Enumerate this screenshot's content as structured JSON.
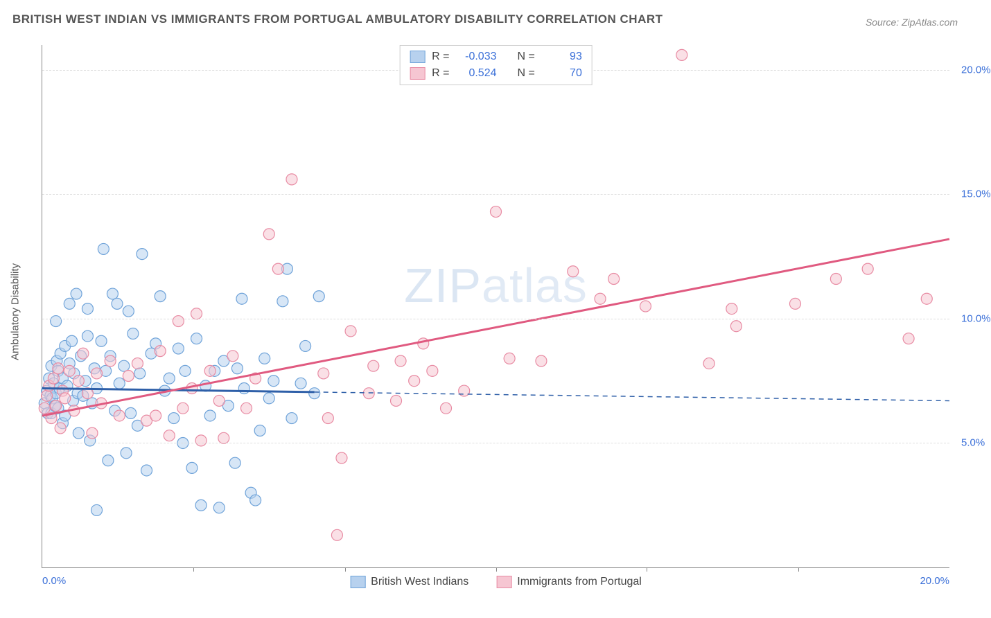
{
  "title": "BRITISH WEST INDIAN VS IMMIGRANTS FROM PORTUGAL AMBULATORY DISABILITY CORRELATION CHART",
  "source": "Source: ZipAtlas.com",
  "ylabel": "Ambulatory Disability",
  "watermark_a": "ZIP",
  "watermark_b": "atlas",
  "chart": {
    "type": "scatter",
    "xlim": [
      0,
      20
    ],
    "ylim": [
      0,
      21
    ],
    "yticks": [
      5,
      10,
      15,
      20
    ],
    "ytick_labels": [
      "5.0%",
      "10.0%",
      "15.0%",
      "20.0%"
    ],
    "xticks": [
      0,
      20
    ],
    "xtick_labels": [
      "0.0%",
      "20.0%"
    ],
    "xtick_minor": [
      3.33,
      6.67,
      10.0,
      13.33,
      16.67
    ],
    "background_color": "#ffffff",
    "grid_color": "#dddddd",
    "marker_radius": 8,
    "marker_stroke_width": 1.2,
    "trend_line_width": 3,
    "trend_dash_width": 1.5
  },
  "series": {
    "blue": {
      "label": "British West Indians",
      "fill": "#b7d1ee",
      "stroke": "#6fa3d9",
      "fill_opacity": 0.55,
      "R": "-0.033",
      "N": "93",
      "trend_y0": 7.2,
      "trend_y_at6": 7.05,
      "trend_y20": 6.7,
      "points": [
        [
          0.05,
          6.6
        ],
        [
          0.1,
          7.1
        ],
        [
          0.12,
          6.2
        ],
        [
          0.15,
          7.6
        ],
        [
          0.18,
          6.9
        ],
        [
          0.2,
          8.1
        ],
        [
          0.2,
          6.2
        ],
        [
          0.22,
          6.8
        ],
        [
          0.25,
          7.4
        ],
        [
          0.28,
          6.5
        ],
        [
          0.3,
          9.9
        ],
        [
          0.3,
          7.0
        ],
        [
          0.32,
          8.3
        ],
        [
          0.35,
          7.9
        ],
        [
          0.35,
          6.4
        ],
        [
          0.38,
          7.2
        ],
        [
          0.4,
          8.6
        ],
        [
          0.45,
          5.8
        ],
        [
          0.45,
          7.6
        ],
        [
          0.5,
          8.9
        ],
        [
          0.5,
          6.1
        ],
        [
          0.55,
          7.3
        ],
        [
          0.6,
          10.6
        ],
        [
          0.6,
          8.2
        ],
        [
          0.65,
          9.1
        ],
        [
          0.68,
          6.7
        ],
        [
          0.7,
          7.8
        ],
        [
          0.75,
          11.0
        ],
        [
          0.78,
          7.0
        ],
        [
          0.8,
          5.4
        ],
        [
          0.85,
          8.5
        ],
        [
          0.9,
          6.9
        ],
        [
          0.95,
          7.5
        ],
        [
          1.0,
          9.3
        ],
        [
          1.0,
          10.4
        ],
        [
          1.05,
          5.1
        ],
        [
          1.1,
          6.6
        ],
        [
          1.15,
          8.0
        ],
        [
          1.2,
          2.3
        ],
        [
          1.2,
          7.2
        ],
        [
          1.3,
          9.1
        ],
        [
          1.35,
          12.8
        ],
        [
          1.4,
          7.9
        ],
        [
          1.45,
          4.3
        ],
        [
          1.5,
          8.5
        ],
        [
          1.55,
          11.0
        ],
        [
          1.6,
          6.3
        ],
        [
          1.65,
          10.6
        ],
        [
          1.7,
          7.4
        ],
        [
          1.8,
          8.1
        ],
        [
          1.85,
          4.6
        ],
        [
          1.9,
          10.3
        ],
        [
          1.95,
          6.2
        ],
        [
          2.0,
          9.4
        ],
        [
          2.1,
          5.7
        ],
        [
          2.15,
          7.8
        ],
        [
          2.2,
          12.6
        ],
        [
          2.3,
          3.9
        ],
        [
          2.4,
          8.6
        ],
        [
          2.5,
          9.0
        ],
        [
          2.6,
          10.9
        ],
        [
          2.7,
          7.1
        ],
        [
          2.8,
          7.6
        ],
        [
          2.9,
          6.0
        ],
        [
          3.0,
          8.8
        ],
        [
          3.1,
          5.0
        ],
        [
          3.15,
          7.9
        ],
        [
          3.3,
          4.0
        ],
        [
          3.4,
          9.2
        ],
        [
          3.5,
          2.5
        ],
        [
          3.6,
          7.3
        ],
        [
          3.7,
          6.1
        ],
        [
          3.8,
          7.9
        ],
        [
          3.9,
          2.4
        ],
        [
          4.0,
          8.3
        ],
        [
          4.1,
          6.5
        ],
        [
          4.25,
          4.2
        ],
        [
          4.3,
          8.0
        ],
        [
          4.4,
          10.8
        ],
        [
          4.45,
          7.2
        ],
        [
          4.6,
          3.0
        ],
        [
          4.7,
          2.7
        ],
        [
          4.8,
          5.5
        ],
        [
          4.9,
          8.4
        ],
        [
          5.0,
          6.8
        ],
        [
          5.1,
          7.5
        ],
        [
          5.3,
          10.7
        ],
        [
          5.4,
          12.0
        ],
        [
          5.5,
          6.0
        ],
        [
          5.7,
          7.4
        ],
        [
          5.8,
          8.9
        ],
        [
          6.0,
          7.0
        ],
        [
          6.1,
          10.9
        ]
      ]
    },
    "pink": {
      "label": "Immigrants from Portugal",
      "fill": "#f6c6d2",
      "stroke": "#e88ba3",
      "fill_opacity": 0.55,
      "R": "0.524",
      "N": "70",
      "trend_y0": 6.1,
      "trend_y20": 13.2,
      "points": [
        [
          0.05,
          6.4
        ],
        [
          0.1,
          6.9
        ],
        [
          0.15,
          7.3
        ],
        [
          0.2,
          6.0
        ],
        [
          0.25,
          7.6
        ],
        [
          0.3,
          6.5
        ],
        [
          0.35,
          8.0
        ],
        [
          0.4,
          5.6
        ],
        [
          0.45,
          7.1
        ],
        [
          0.5,
          6.8
        ],
        [
          0.6,
          7.9
        ],
        [
          0.7,
          6.3
        ],
        [
          0.8,
          7.5
        ],
        [
          0.9,
          8.6
        ],
        [
          1.0,
          7.0
        ],
        [
          1.1,
          5.4
        ],
        [
          1.2,
          7.8
        ],
        [
          1.3,
          6.6
        ],
        [
          1.5,
          8.3
        ],
        [
          1.7,
          6.1
        ],
        [
          1.9,
          7.7
        ],
        [
          2.1,
          8.2
        ],
        [
          2.3,
          5.9
        ],
        [
          2.5,
          6.1
        ],
        [
          2.6,
          8.7
        ],
        [
          2.8,
          5.3
        ],
        [
          3.0,
          9.9
        ],
        [
          3.1,
          6.4
        ],
        [
          3.3,
          7.2
        ],
        [
          3.4,
          10.2
        ],
        [
          3.5,
          5.1
        ],
        [
          3.7,
          7.9
        ],
        [
          3.9,
          6.7
        ],
        [
          4.0,
          5.2
        ],
        [
          4.2,
          8.5
        ],
        [
          4.5,
          6.4
        ],
        [
          4.7,
          7.6
        ],
        [
          5.0,
          13.4
        ],
        [
          5.2,
          12.0
        ],
        [
          5.5,
          15.6
        ],
        [
          6.2,
          7.8
        ],
        [
          6.3,
          6.0
        ],
        [
          6.5,
          1.3
        ],
        [
          6.6,
          4.4
        ],
        [
          6.8,
          9.5
        ],
        [
          7.2,
          7.0
        ],
        [
          7.3,
          8.1
        ],
        [
          7.8,
          6.7
        ],
        [
          7.9,
          8.3
        ],
        [
          8.2,
          7.5
        ],
        [
          8.4,
          9.0
        ],
        [
          8.6,
          7.9
        ],
        [
          8.9,
          6.4
        ],
        [
          9.3,
          7.1
        ],
        [
          10.0,
          14.3
        ],
        [
          10.3,
          8.4
        ],
        [
          11.0,
          8.3
        ],
        [
          11.7,
          11.9
        ],
        [
          12.3,
          10.8
        ],
        [
          12.6,
          11.6
        ],
        [
          13.3,
          10.5
        ],
        [
          14.1,
          20.6
        ],
        [
          14.7,
          8.2
        ],
        [
          15.2,
          10.4
        ],
        [
          15.3,
          9.7
        ],
        [
          16.6,
          10.6
        ],
        [
          17.5,
          11.6
        ],
        [
          18.2,
          12.0
        ],
        [
          19.1,
          9.2
        ],
        [
          19.5,
          10.8
        ]
      ]
    }
  },
  "stats_labels": {
    "R": "R =",
    "N": "N ="
  }
}
